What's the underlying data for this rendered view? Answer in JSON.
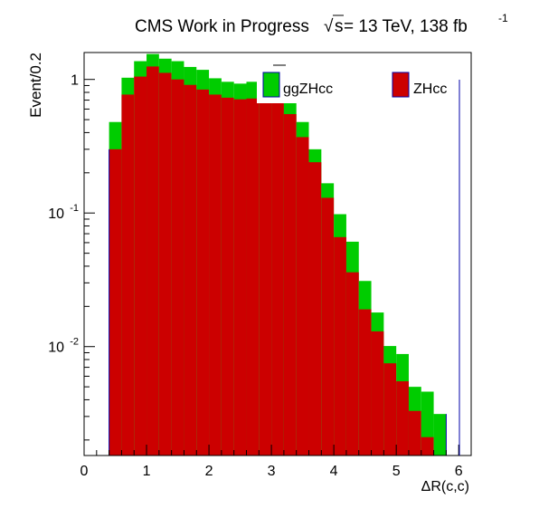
{
  "chart_data": {
    "type": "bar",
    "title": "CMS Work in Progress",
    "title_energy": "s",
    "title_energy_suffix": " = 13 TeV, 138 fb",
    "title_lumi_exp": "-1",
    "xlabel": "ΔR(c,c)",
    "ylabel": "Event/0.2",
    "xlim": [
      0,
      6.2
    ],
    "ylim": [
      0.00153,
      1.59
    ],
    "y_scale": "log",
    "x_ticks": [
      "0",
      "1",
      "2",
      "3",
      "4",
      "5",
      "6"
    ],
    "y_ticks": [
      {
        "base": "10",
        "exp": "-2",
        "value": 0.01
      },
      {
        "base": "10",
        "exp": "-1",
        "value": 0.1
      },
      {
        "base": "1",
        "exp": "",
        "value": 1
      }
    ],
    "stacked": true,
    "bin_width": 0.2,
    "bin_edges_start": 0.4,
    "legend": [
      "ggZHcc",
      "ZHcc"
    ],
    "legend_placement": "top-right",
    "series": [
      {
        "name": "ZHcc",
        "color": "#cc0000",
        "values": [
          0.3,
          0.77,
          1.05,
          1.25,
          1.12,
          1.0,
          0.91,
          0.84,
          0.77,
          0.73,
          0.71,
          0.72,
          0.76,
          0.81,
          0.55,
          0.37,
          0.24,
          0.13,
          0.066,
          0.036,
          0.019,
          0.013,
          0.0075,
          0.0055,
          0.0033,
          0.0021,
          0.00153
        ]
      },
      {
        "name": "ggZHcc",
        "color": "#00cc00",
        "values": [
          0.18,
          0.26,
          0.32,
          0.3,
          0.31,
          0.37,
          0.33,
          0.34,
          0.25,
          0.23,
          0.22,
          0.24,
          0.37,
          0.39,
          0.15,
          0.11,
          0.06,
          0.037,
          0.032,
          0.025,
          0.012,
          0.005,
          0.0026,
          0.0033,
          0.0017,
          0.0025,
          0.0016
        ]
      }
    ]
  }
}
